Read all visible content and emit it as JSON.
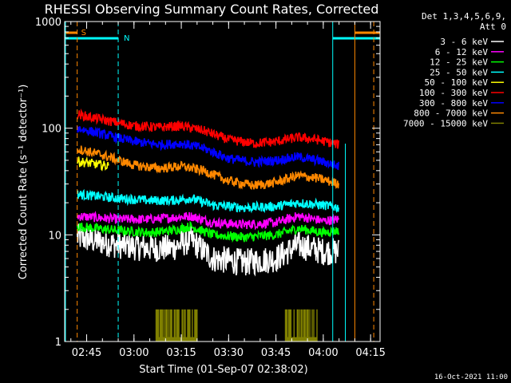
{
  "chart_data": {
    "type": "line",
    "title": "RHESSI Observing Summary Count Rates, Corrected",
    "xlabel": "Start Time (01-Sep-07 02:38:02)",
    "ylabel": "Corrected Count Rate (s⁻¹ detector⁻¹)",
    "y_scale": "log",
    "ylim": [
      1,
      1000
    ],
    "xlim": [
      "02:38:02",
      "04:18:00"
    ],
    "x_ticks": [
      "02:45",
      "03:00",
      "03:15",
      "03:30",
      "03:45",
      "04:00",
      "04:15"
    ],
    "y_ticks": [
      "1",
      "10",
      "100",
      "1000"
    ],
    "legend_header": [
      "Det 1,3,4,5,6,9,",
      "Att 0"
    ],
    "legend_position": "right",
    "date_stamp": "16-Oct-2021 11:00",
    "flag_S": "S",
    "flag_N": "N",
    "series": [
      {
        "name": "3 - 6 keV",
        "color": "#ffffff",
        "x": [
          "02:42",
          "02:55",
          "03:05",
          "03:12",
          "03:18",
          "03:25",
          "03:35",
          "03:45",
          "03:52",
          "04:00",
          "04:05"
        ],
        "values": [
          9.5,
          8,
          7.5,
          7.5,
          9,
          6,
          5.5,
          6,
          8,
          7,
          7
        ]
      },
      {
        "name": "6 - 12 keV",
        "color": "#ff00ff",
        "x": [
          "02:42",
          "02:55",
          "03:05",
          "03:12",
          "03:18",
          "03:25",
          "03:35",
          "03:45",
          "03:52",
          "04:00",
          "04:05"
        ],
        "values": [
          15,
          14,
          14,
          14.5,
          15,
          13,
          12.5,
          13,
          15,
          13.5,
          14
        ]
      },
      {
        "name": "12 - 25 keV",
        "color": "#00ff00",
        "x": [
          "02:42",
          "02:55",
          "03:05",
          "03:12",
          "03:18",
          "03:25",
          "03:35",
          "03:45",
          "03:52",
          "04:00",
          "04:05"
        ],
        "values": [
          12,
          11,
          10.5,
          11,
          12,
          10,
          9.5,
          10,
          11.5,
          10.5,
          11
        ]
      },
      {
        "name": "25 - 50 keV",
        "color": "#00ffff",
        "x": [
          "02:42",
          "02:55",
          "03:05",
          "03:12",
          "03:18",
          "03:25",
          "03:35",
          "03:45",
          "03:52",
          "04:00",
          "04:05"
        ],
        "values": [
          24,
          22,
          21,
          21,
          22,
          19,
          18,
          18.5,
          20,
          19,
          18
        ]
      },
      {
        "name": "50 - 100 keV",
        "color": "#ffff00",
        "x": [
          "02:42",
          "02:52"
        ],
        "values": [
          49,
          44
        ]
      },
      {
        "name": "100 - 300 keV",
        "color": "#ff0000",
        "x": [
          "02:42",
          "02:50",
          "03:00",
          "03:08",
          "03:15",
          "03:22",
          "03:30",
          "03:38",
          "03:45",
          "03:52",
          "03:58",
          "04:05"
        ],
        "values": [
          135,
          120,
          105,
          102,
          105,
          95,
          78,
          72,
          75,
          82,
          78,
          70
        ]
      },
      {
        "name": "300 - 800 keV",
        "color": "#0000ff",
        "x": [
          "02:42",
          "02:50",
          "03:00",
          "03:08",
          "03:15",
          "03:22",
          "03:30",
          "03:38",
          "03:45",
          "03:52",
          "03:58",
          "04:05"
        ],
        "values": [
          100,
          88,
          75,
          70,
          72,
          65,
          52,
          48,
          50,
          54,
          50,
          44
        ]
      },
      {
        "name": "800 - 7000 keV",
        "color": "#ff8800",
        "x": [
          "02:42",
          "02:50",
          "03:00",
          "03:08",
          "03:15",
          "03:22",
          "03:30",
          "03:38",
          "03:45",
          "03:52",
          "03:58",
          "04:05"
        ],
        "values": [
          64,
          56,
          45,
          42,
          44,
          40,
          32,
          29,
          31,
          36,
          34,
          30
        ]
      },
      {
        "name": "7000 - 15000 keV",
        "color": "#808000",
        "x": [],
        "values": []
      }
    ]
  }
}
